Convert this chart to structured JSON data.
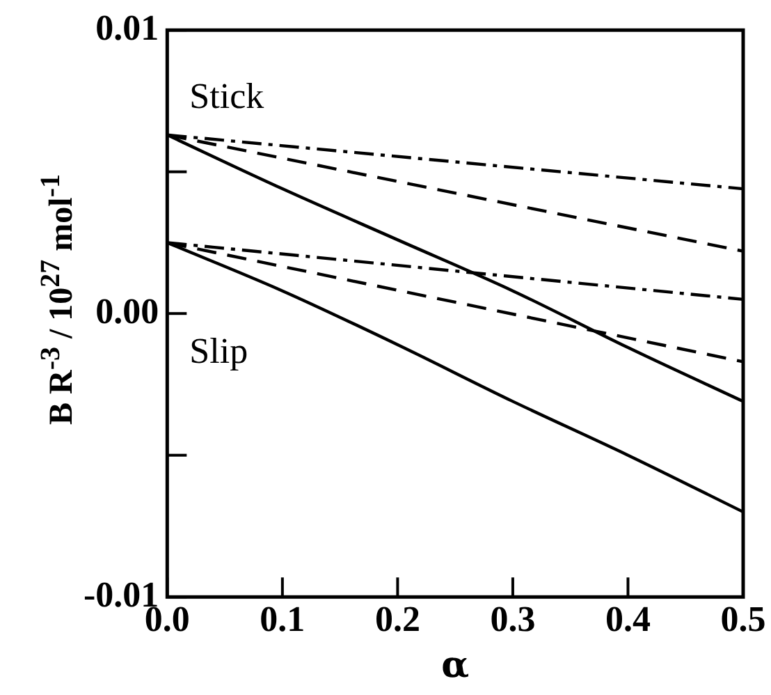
{
  "chart_data": {
    "type": "line",
    "xlabel": "α",
    "ylabel": "B R$^{-3}$ / 10$^{27}$ mol$^{-1}$",
    "xlim": [
      0,
      0.5
    ],
    "xticks": [
      {
        "value": 0,
        "label": "0.0"
      },
      {
        "value": 0.1,
        "label": "0.1"
      },
      {
        "value": 0.2,
        "label": "0.2"
      },
      {
        "value": 0.3,
        "label": "0.3"
      },
      {
        "value": 0.4,
        "label": "0.4"
      },
      {
        "value": 0.5,
        "label": "0.5"
      }
    ],
    "ylim": [
      -0.01,
      0.01
    ],
    "yticks": [
      {
        "value": -0.01,
        "label": "-0.01"
      },
      {
        "value": -0.005,
        "label": null
      },
      {
        "value": 0,
        "label": "0.00"
      },
      {
        "value": 0.005,
        "label": null
      },
      {
        "value": 0.01,
        "label": "0.01"
      }
    ],
    "grid": false,
    "legend": false,
    "marker": "none",
    "series": [
      {
        "color": "#000000",
        "line_style": "solid",
        "x": [
          0,
          0.1,
          0.2,
          0.3,
          0.4,
          0.5
        ],
        "values": [
          0.0063,
          0.0044,
          0.0026,
          0.0008,
          -0.0012,
          -0.0031
        ]
      },
      {
        "color": "#000000",
        "line_style": "dashed",
        "x": [
          0,
          0.5
        ],
        "values": [
          0.0063,
          0.0022
        ]
      },
      {
        "color": "#000000",
        "line_style": "dashdot",
        "x": [
          0,
          0.5
        ],
        "values": [
          0.0063,
          0.0044
        ]
      },
      {
        "color": "#000000",
        "line_style": "solid",
        "x": [
          0,
          0.1,
          0.2,
          0.3,
          0.4,
          0.5
        ],
        "values": [
          0.0025,
          0.0008,
          -0.0011,
          -0.0031,
          -0.005,
          -0.007
        ]
      },
      {
        "color": "#000000",
        "line_style": "dashed",
        "x": [
          0,
          0.5
        ],
        "values": [
          0.0025,
          -0.0017
        ]
      },
      {
        "color": "#000000",
        "line_style": "dashdot",
        "x": [
          0,
          0.5
        ],
        "values": [
          0.0025,
          0.0005
        ]
      }
    ],
    "annotations": [
      "Stick",
      "Slip"
    ]
  }
}
